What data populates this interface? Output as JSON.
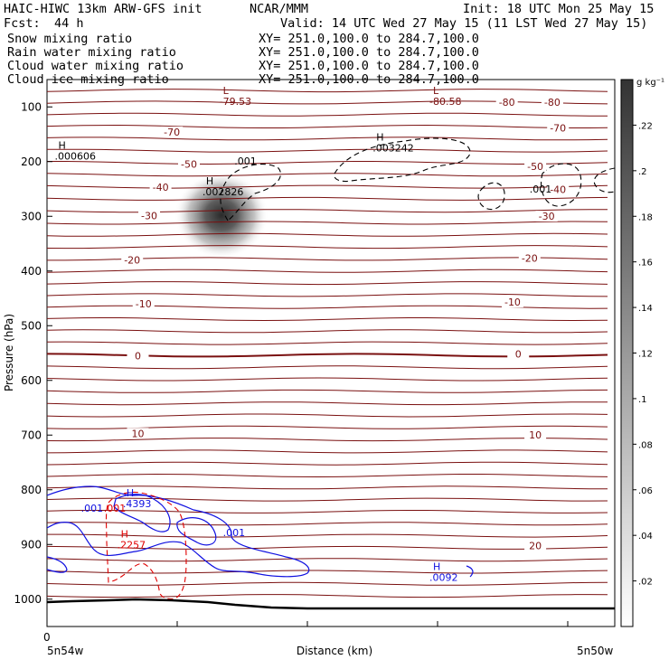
{
  "header": {
    "title": "HAIC-HIWC 13km ARW-GFS init",
    "org": "NCAR/MMM",
    "init": "Init: 18 UTC Mon 25 May 15",
    "fcst_label": "Fcst:",
    "fcst_value": "44 h",
    "valid": "Valid: 14 UTC Wed 27 May 15 (11 LST Wed 27 May 15)"
  },
  "legend": [
    {
      "label": "Snow mixing ratio",
      "xy": "XY= 251.0,100.0 to 284.7,100.0",
      "color": "#000000"
    },
    {
      "label": "Rain water mixing ratio",
      "xy": "XY= 251.0,100.0 to 284.7,100.0",
      "color": "#e00000"
    },
    {
      "label": "Cloud water mixing ratio",
      "xy": "XY= 251.0,100.0 to 284.7,100.0",
      "color": "#1010e0"
    },
    {
      "label": "Cloud ice mixing ratio",
      "xy": "XY= 251.0,100.0 to 284.7,100.0",
      "color": "#000000"
    }
  ],
  "colorbar": {
    "unit": "g kg⁻¹",
    "ticks": [
      ".22",
      ".2",
      ".18",
      ".16",
      ".14",
      ".12",
      ".1",
      ".08",
      ".06",
      ".04",
      ".02"
    ],
    "tick_values": [
      0.22,
      0.2,
      0.18,
      0.16,
      0.14,
      0.12,
      0.1,
      0.08,
      0.06,
      0.04,
      0.02
    ],
    "range": [
      0,
      0.24
    ]
  },
  "colors": {
    "temperature": "#7a1010",
    "snow": "#000000",
    "rain": "#e00000",
    "cloud_water": "#1010e0",
    "cloud_ice_fill": "#333333",
    "terrain": "#000000"
  },
  "chart_data": {
    "type": "contour",
    "title": "",
    "ylabel": "Pressure (hPa)",
    "xlabel": "Distance (km)",
    "ylim": [
      1050,
      50
    ],
    "yticks": [
      "100",
      "200",
      "300",
      "400",
      "500",
      "600",
      "700",
      "800",
      "900",
      "1000"
    ],
    "ytick_values": [
      100,
      200,
      300,
      400,
      500,
      600,
      700,
      800,
      900,
      1000
    ],
    "xaxis": {
      "origin": "0",
      "left": "5n54w",
      "right": "5n50w"
    },
    "temperature_labels": [
      {
        "text": "-70",
        "x": 0.22,
        "p": 149
      },
      {
        "text": "-70",
        "x": 0.9,
        "p": 142
      },
      {
        "text": "-50",
        "x": 0.25,
        "p": 208
      },
      {
        "text": "-50",
        "x": 0.86,
        "p": 212
      },
      {
        "text": "-40",
        "x": 0.2,
        "p": 250
      },
      {
        "text": "-40",
        "x": 0.9,
        "p": 254
      },
      {
        "text": "-30",
        "x": 0.18,
        "p": 302
      },
      {
        "text": "-30",
        "x": 0.88,
        "p": 303
      },
      {
        "text": "-20",
        "x": 0.15,
        "p": 383
      },
      {
        "text": "-20",
        "x": 0.85,
        "p": 380
      },
      {
        "text": "-10",
        "x": 0.17,
        "p": 463
      },
      {
        "text": "-10",
        "x": 0.82,
        "p": 460
      },
      {
        "text": "0",
        "x": 0.16,
        "p": 558
      },
      {
        "text": "0",
        "x": 0.83,
        "p": 555
      },
      {
        "text": "10",
        "x": 0.16,
        "p": 700
      },
      {
        "text": "10",
        "x": 0.86,
        "p": 703
      },
      {
        "text": "20",
        "x": 0.86,
        "p": 905
      },
      {
        "text": "-80",
        "x": 0.81,
        "p": 95
      },
      {
        "text": "-80",
        "x": 0.89,
        "p": 95
      }
    ],
    "extrema_labels": [
      {
        "kind": "L",
        "value": "-79.53",
        "x": 0.31,
        "p": 90,
        "color": "#7a1010"
      },
      {
        "kind": "L",
        "value": "-80.58",
        "x": 0.68,
        "p": 90,
        "color": "#7a1010"
      },
      {
        "kind": "H",
        "value": ".000606",
        "x": 0.02,
        "p": 190,
        "color": "#000000"
      },
      {
        "kind": "H",
        "value": ".002826",
        "x": 0.28,
        "p": 255,
        "color": "#000000"
      },
      {
        "kind": "H",
        "value": ".003242",
        "x": 0.58,
        "p": 175,
        "color": "#000000"
      },
      {
        "kind": "H",
        "value": ".4393",
        "x": 0.14,
        "p": 825,
        "color": "#1010e0"
      },
      {
        "kind": "H",
        "value": ".2257",
        "x": 0.13,
        "p": 900,
        "color": "#e00000"
      },
      {
        "kind": "H",
        "value": ".0092",
        "x": 0.68,
        "p": 960,
        "color": "#1010e0"
      }
    ],
    "contour_labels": [
      {
        "text": ".001",
        "x": 0.33,
        "p": 205,
        "color": "#000000"
      },
      {
        "text": ".001",
        "x": 0.85,
        "p": 257,
        "color": "#000000"
      },
      {
        "text": ".001",
        "x": 0.06,
        "p": 840,
        "color": "#1010e0"
      },
      {
        "text": ".001",
        "x": 0.31,
        "p": 885,
        "color": "#1010e0"
      },
      {
        "text": ".001",
        "x": 0.1,
        "p": 840,
        "color": "#e00000"
      }
    ]
  }
}
